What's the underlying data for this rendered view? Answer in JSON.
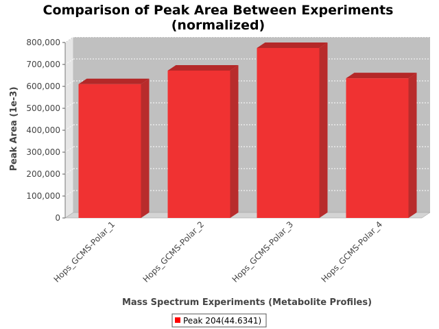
{
  "chart_data": {
    "type": "bar",
    "title_line1": "Comparison of Peak Area Between Experiments",
    "title_line2": "(normalized)",
    "xlabel": "Mass Spectrum Experiments (Metabolite Profiles)",
    "ylabel": "Peak Area (1e-3)",
    "categories": [
      "Hops_GCMS-Polar_1",
      "Hops_GCMS-Polar_2",
      "Hops_GCMS-Polar_3",
      "Hops_GCMS-Polar_4"
    ],
    "series": [
      {
        "name": "Peak 204(44.6341)",
        "values": [
          610000,
          672000,
          775000,
          637000
        ]
      }
    ],
    "ylim": [
      0,
      800000
    ],
    "yticks": [
      0,
      100000,
      200000,
      300000,
      400000,
      500000,
      600000,
      700000,
      800000
    ],
    "ytick_labels": [
      "0",
      "100,000",
      "200,000",
      "300,000",
      "400,000",
      "500,000",
      "600,000",
      "700,000",
      "800,000"
    ],
    "grid": true,
    "legend_position": "bottom-center",
    "colors": {
      "bar_front": "#f03232",
      "bar_top": "#b42828",
      "bar_side": "#b82c2c",
      "plot_back": "#c0c0c0",
      "plot_wall": "#e6e6e6",
      "plot_floor": "#d4d4d4",
      "grid": "#ffffff",
      "legend_swatch": "#ff0000"
    }
  }
}
